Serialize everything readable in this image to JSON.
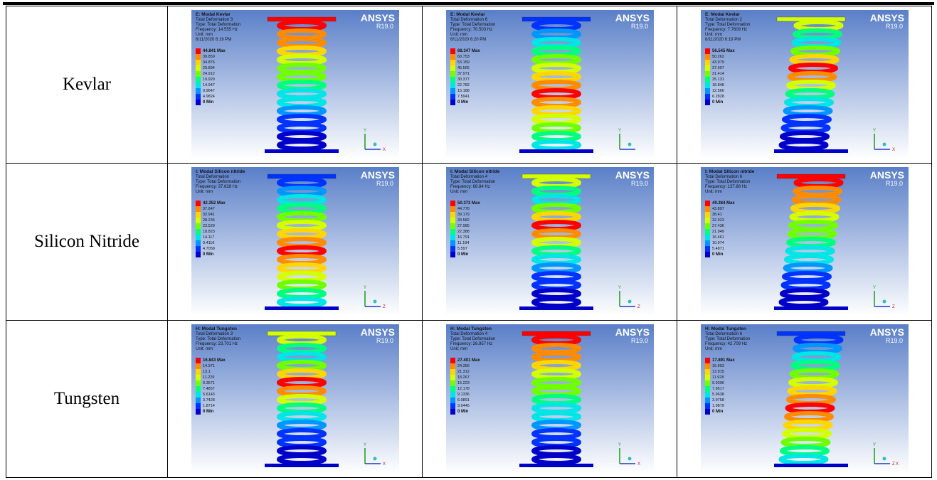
{
  "rows": [
    {
      "material": "Kevlar",
      "results": [
        {
          "header": [
            "E: Modal Kevlar",
            "Total Deformation 3",
            "Type: Total Deformation",
            "Frequency: 14.555 Hz",
            "Unit: mm",
            "6/11/2020 6:19 PM"
          ],
          "legend": [
            "44.841 Max",
            "39.859",
            "34.876",
            "29.894",
            "24.912",
            "19.929",
            "14.947",
            "9.9647",
            "4.9824",
            "0 Min"
          ],
          "brand": "ANSYS",
          "version": "R19.0",
          "axes": [
            "Y",
            "X"
          ]
        },
        {
          "header": [
            "E: Modal Kevlar",
            "Total Deformation 6",
            "Type: Total Deformation",
            "Frequency: 70.503 Hz",
            "Unit: mm",
            "6/11/2020 6:20 PM"
          ],
          "legend": [
            "68.347 Max",
            "60.753",
            "53.159",
            "45.565",
            "37.971",
            "30.377",
            "22.782",
            "15.188",
            "7.5941",
            "0 Min"
          ],
          "brand": "ANSYS",
          "version": "R19.0",
          "axes": [
            "Y"
          ]
        },
        {
          "header": [
            "E: Modal Kevlar",
            "Total Deformation 2",
            "Type: Total Deformation",
            "Frequency: 7.7609 Hz",
            "Unit: mm",
            "6/11/2020 6:19 PM"
          ],
          "legend": [
            "56.545 Max",
            "50.262",
            "43.979",
            "37.697",
            "31.414",
            "25.131",
            "18.848",
            "12.566",
            "6.2828",
            "0 Min"
          ],
          "brand": "ANSYS",
          "version": "R19.0",
          "axes": [
            "Y",
            "X"
          ]
        }
      ]
    },
    {
      "material": "Silicon Nitride",
      "results": [
        {
          "header": [
            "I: Modal Silicon nitride",
            "Total Deformation",
            "Type: Total Deformation",
            "Frequency: 37.628 Hz",
            "Unit: mm"
          ],
          "legend": [
            "42.352 Max",
            "37.647",
            "32.941",
            "28.235",
            "23.529",
            "18.823",
            "14.117",
            "9.4116",
            "4.7058",
            "0 Min"
          ],
          "brand": "ANSYS",
          "version": "R19.0",
          "axes": [
            "Y",
            "Z"
          ]
        },
        {
          "header": [
            "I: Modal Silicon nitride",
            "Total Deformation 4",
            "Type: Total Deformation",
            "Frequency: 68.84 Hz",
            "Unit: mm"
          ],
          "legend": [
            "50.373 Max",
            "44.776",
            "39.179",
            "33.582",
            "27.985",
            "22.388",
            "16.791",
            "11.194",
            "5.597",
            "0 Min"
          ],
          "brand": "ANSYS",
          "version": "R19.0",
          "axes": [
            "Y",
            "Z"
          ]
        },
        {
          "header": [
            "I: Modal Silicon nitride",
            "Total Deformation 6",
            "Type: Total Deformation",
            "Frequency: 137.88 Hz",
            "Unit: mm"
          ],
          "legend": [
            "49.384 Max",
            "43.897",
            "38.41",
            "32.923",
            "27.436",
            "21.949",
            "16.461",
            "10.974",
            "5.4871",
            "0 Min"
          ],
          "brand": "ANSYS",
          "version": "R19.0",
          "axes": [
            "Y",
            "Z"
          ]
        }
      ]
    },
    {
      "material": "Tungsten",
      "results": [
        {
          "header": [
            "H: Modal Tungsten",
            "Total Deformation 3",
            "Type: Total Deformation",
            "Frequency: 23.701 Hz",
            "Unit: mm"
          ],
          "legend": [
            "16.843 Max",
            "14.971",
            "13.1",
            "11.229",
            "9.3571",
            "7.4857",
            "5.6143",
            "3.7428",
            "1.8714",
            "0 Min"
          ],
          "brand": "ANSYS",
          "version": "R19.0",
          "axes": [
            "Y",
            "X"
          ]
        },
        {
          "header": [
            "H: Modal Tungsten",
            "Total Deformation 4",
            "Type: Total Deformation",
            "Frequency: 26.957 Hz",
            "Unit: mm"
          ],
          "legend": [
            "27.401 Max",
            "24.356",
            "21.312",
            "18.267",
            "15.223",
            "12.178",
            "9.1336",
            "6.0891",
            "3.0445",
            "0 Min"
          ],
          "brand": "ANSYS",
          "version": "R19.0",
          "axes": [
            "Y",
            "X"
          ]
        },
        {
          "header": [
            "H: Modal Tungsten",
            "Total Deformation 6",
            "Type: Total Deformation",
            "Frequency: 42.709 Hz",
            "Unit: mm"
          ],
          "legend": [
            "17.891 Max",
            "15.903",
            "13.915",
            "11.928",
            "9.9396",
            "7.9517",
            "5.9638",
            "3.9758",
            "1.9879",
            "0 Min"
          ],
          "brand": "ANSYS",
          "version": "R19.0",
          "axes": [
            "Y",
            "Z",
            "X"
          ]
        }
      ]
    }
  ]
}
